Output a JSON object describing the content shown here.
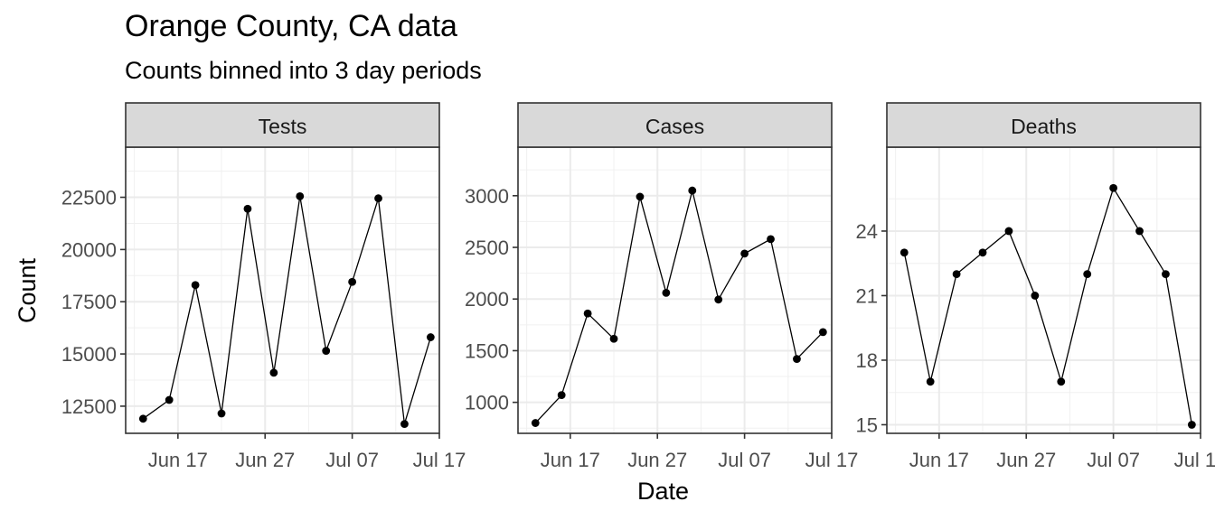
{
  "title": "Orange County, CA data",
  "subtitle": "Counts binned into 3 day periods",
  "chart_data": {
    "type": "line",
    "title": "Orange County, CA data",
    "subtitle": "Counts binned into 3 day periods",
    "xlabel": "Date",
    "ylabel": "Count",
    "grid": true,
    "legend": "none",
    "x": [
      "2020-06-13",
      "2020-06-16",
      "2020-06-19",
      "2020-06-22",
      "2020-06-25",
      "2020-06-28",
      "2020-07-01",
      "2020-07-04",
      "2020-07-07",
      "2020-07-10",
      "2020-07-13",
      "2020-07-16"
    ],
    "x_tick_labels": [
      "Jun 17",
      "Jun 27",
      "Jul 07",
      "Jul 17"
    ],
    "x_ticks": [
      "2020-06-17",
      "2020-06-27",
      "2020-07-07",
      "2020-07-17"
    ],
    "xlim": [
      "2020-06-11",
      "2020-07-17"
    ],
    "panels": [
      {
        "name": "Tests",
        "values": [
          11900,
          12800,
          18300,
          12150,
          21950,
          14100,
          22550,
          15150,
          18450,
          22450,
          11650,
          15800
        ],
        "ylim": [
          11200,
          24900
        ],
        "y_ticks": [
          12500,
          15000,
          17500,
          20000,
          22500
        ],
        "y_tick_labels": [
          "12500",
          "15000",
          "17500",
          "20000",
          "22500"
        ]
      },
      {
        "name": "Cases",
        "values": [
          800,
          1070,
          1860,
          1615,
          2990,
          2060,
          3050,
          1995,
          2440,
          2580,
          1420,
          1680
        ],
        "ylim": [
          700,
          3470
        ],
        "y_ticks": [
          1000,
          1500,
          2000,
          2500,
          3000
        ],
        "y_tick_labels": [
          "1000",
          "1500",
          "2000",
          "2500",
          "3000"
        ]
      },
      {
        "name": "Deaths",
        "values": [
          23,
          17,
          22,
          23,
          24,
          21,
          17,
          22,
          26,
          24,
          22,
          15
        ],
        "ylim": [
          14.6,
          27.9
        ],
        "y_ticks": [
          15,
          18,
          21,
          24
        ],
        "y_tick_labels": [
          "15",
          "18",
          "21",
          "24"
        ]
      }
    ]
  }
}
